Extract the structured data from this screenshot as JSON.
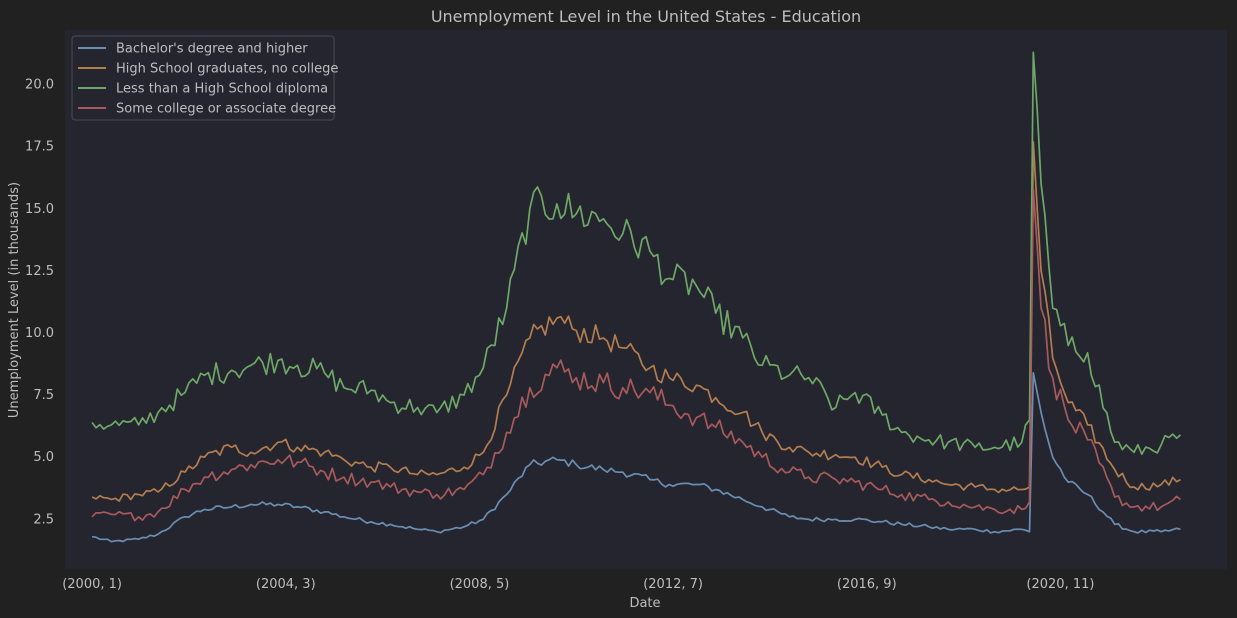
{
  "colors": {
    "figure_background": "#212121",
    "plot_background": "#252530",
    "text": "#bdbdbd",
    "legend_border": "#4a4a52"
  },
  "chart_data": {
    "type": "line",
    "title": "Unemployment Level in the United States - Education",
    "xlabel": "Date",
    "ylabel": "Unemployment Level (in thousands)",
    "x_start": "2000-01",
    "x_end": "2023-06",
    "xlim": [
      "1999-06",
      "2024-06"
    ],
    "ylim": [
      0.5,
      22.2
    ],
    "y_ticks": [
      2.5,
      5.0,
      7.5,
      10.0,
      12.5,
      15.0,
      17.5,
      20.0
    ],
    "x_ticks": [
      {
        "label": "(2000, 1)",
        "date": "2000-01"
      },
      {
        "label": "(2004, 3)",
        "date": "2004-03"
      },
      {
        "label": "(2008, 5)",
        "date": "2008-05"
      },
      {
        "label": "(2012, 7)",
        "date": "2012-07"
      },
      {
        "label": "(2016, 9)",
        "date": "2016-09"
      },
      {
        "label": "(2020, 11)",
        "date": "2020-11"
      }
    ],
    "grid": false,
    "legend_position": "top-left",
    "series": [
      {
        "name": "Bachelor's degree and higher",
        "color": "#6a8eb2",
        "points": [
          [
            "2000-01",
            1.8
          ],
          [
            "2000-06",
            1.6
          ],
          [
            "2001-01",
            1.7
          ],
          [
            "2001-06",
            1.9
          ],
          [
            "2002-01",
            2.6
          ],
          [
            "2002-06",
            2.9
          ],
          [
            "2003-01",
            3.0
          ],
          [
            "2003-06",
            3.1
          ],
          [
            "2004-01",
            3.1
          ],
          [
            "2004-06",
            3.0
          ],
          [
            "2005-01",
            2.8
          ],
          [
            "2005-06",
            2.6
          ],
          [
            "2006-01",
            2.4
          ],
          [
            "2006-06",
            2.3
          ],
          [
            "2007-01",
            2.1
          ],
          [
            "2007-06",
            2.0
          ],
          [
            "2008-01",
            2.2
          ],
          [
            "2008-06",
            2.5
          ],
          [
            "2008-12",
            3.5
          ],
          [
            "2009-06",
            4.7
          ],
          [
            "2010-01",
            4.9
          ],
          [
            "2010-06",
            4.7
          ],
          [
            "2011-01",
            4.5
          ],
          [
            "2011-06",
            4.4
          ],
          [
            "2012-01",
            4.1
          ],
          [
            "2012-06",
            3.9
          ],
          [
            "2013-01",
            3.9
          ],
          [
            "2013-06",
            3.7
          ],
          [
            "2014-01",
            3.3
          ],
          [
            "2014-06",
            3.0
          ],
          [
            "2015-01",
            2.6
          ],
          [
            "2015-06",
            2.5
          ],
          [
            "2016-01",
            2.5
          ],
          [
            "2016-06",
            2.5
          ],
          [
            "2017-01",
            2.4
          ],
          [
            "2017-06",
            2.3
          ],
          [
            "2018-01",
            2.2
          ],
          [
            "2018-06",
            2.1
          ],
          [
            "2019-01",
            2.1
          ],
          [
            "2019-06",
            2.0
          ],
          [
            "2020-01",
            2.1
          ],
          [
            "2020-03",
            2.0
          ],
          [
            "2020-04",
            8.4
          ],
          [
            "2020-05",
            7.6
          ],
          [
            "2020-06",
            6.8
          ],
          [
            "2020-09",
            5.0
          ],
          [
            "2021-01",
            4.0
          ],
          [
            "2021-06",
            3.5
          ],
          [
            "2022-01",
            2.3
          ],
          [
            "2022-06",
            2.0
          ],
          [
            "2023-01",
            2.0
          ],
          [
            "2023-06",
            2.1
          ]
        ]
      },
      {
        "name": "High School graduates, no college",
        "color": "#b37d4e",
        "points": [
          [
            "2000-01",
            3.4
          ],
          [
            "2000-06",
            3.3
          ],
          [
            "2001-01",
            3.5
          ],
          [
            "2001-06",
            3.6
          ],
          [
            "2002-01",
            4.4
          ],
          [
            "2002-06",
            5.0
          ],
          [
            "2003-01",
            5.4
          ],
          [
            "2003-06",
            5.2
          ],
          [
            "2004-01",
            5.6
          ],
          [
            "2004-06",
            5.4
          ],
          [
            "2005-01",
            5.2
          ],
          [
            "2005-06",
            4.9
          ],
          [
            "2006-01",
            4.6
          ],
          [
            "2006-06",
            4.6
          ],
          [
            "2007-01",
            4.3
          ],
          [
            "2007-06",
            4.3
          ],
          [
            "2008-01",
            4.6
          ],
          [
            "2008-06",
            5.2
          ],
          [
            "2008-12",
            7.5
          ],
          [
            "2009-06",
            9.8
          ],
          [
            "2010-01",
            10.6
          ],
          [
            "2010-06",
            10.1
          ],
          [
            "2011-01",
            9.8
          ],
          [
            "2011-06",
            9.4
          ],
          [
            "2012-01",
            8.6
          ],
          [
            "2012-06",
            8.2
          ],
          [
            "2013-01",
            7.9
          ],
          [
            "2013-06",
            7.4
          ],
          [
            "2014-01",
            6.8
          ],
          [
            "2014-06",
            6.0
          ],
          [
            "2015-01",
            5.4
          ],
          [
            "2015-06",
            5.2
          ],
          [
            "2016-01",
            5.1
          ],
          [
            "2016-06",
            5.0
          ],
          [
            "2017-01",
            4.6
          ],
          [
            "2017-06",
            4.3
          ],
          [
            "2018-01",
            4.1
          ],
          [
            "2018-06",
            3.9
          ],
          [
            "2019-01",
            3.8
          ],
          [
            "2019-06",
            3.7
          ],
          [
            "2020-01",
            3.7
          ],
          [
            "2020-03",
            3.8
          ],
          [
            "2020-04",
            17.7
          ],
          [
            "2020-05",
            15.0
          ],
          [
            "2020-06",
            12.5
          ],
          [
            "2020-09",
            9.0
          ],
          [
            "2021-01",
            7.2
          ],
          [
            "2021-06",
            6.3
          ],
          [
            "2022-01",
            4.5
          ],
          [
            "2022-06",
            3.8
          ],
          [
            "2023-01",
            3.9
          ],
          [
            "2023-06",
            4.1
          ]
        ]
      },
      {
        "name": "Less than a High School diploma",
        "color": "#6ea866",
        "points": [
          [
            "2000-01",
            6.4
          ],
          [
            "2000-06",
            6.3
          ],
          [
            "2001-01",
            6.3
          ],
          [
            "2001-06",
            6.8
          ],
          [
            "2002-01",
            7.6
          ],
          [
            "2002-06",
            8.3
          ],
          [
            "2003-01",
            8.5
          ],
          [
            "2003-06",
            8.7
          ],
          [
            "2004-01",
            8.9
          ],
          [
            "2004-06",
            8.7
          ],
          [
            "2005-01",
            8.4
          ],
          [
            "2005-06",
            7.8
          ],
          [
            "2006-01",
            7.7
          ],
          [
            "2006-06",
            7.2
          ],
          [
            "2007-01",
            7.0
          ],
          [
            "2007-06",
            6.8
          ],
          [
            "2008-01",
            7.5
          ],
          [
            "2008-06",
            8.6
          ],
          [
            "2008-12",
            11.0
          ],
          [
            "2009-06",
            15.0
          ],
          [
            "2010-01",
            15.2
          ],
          [
            "2010-06",
            14.8
          ],
          [
            "2011-01",
            14.6
          ],
          [
            "2011-06",
            14.0
          ],
          [
            "2012-01",
            13.3
          ],
          [
            "2012-06",
            12.2
          ],
          [
            "2013-01",
            11.9
          ],
          [
            "2013-06",
            10.8
          ],
          [
            "2014-01",
            9.8
          ],
          [
            "2014-06",
            8.7
          ],
          [
            "2015-01",
            8.3
          ],
          [
            "2015-06",
            8.2
          ],
          [
            "2016-01",
            7.0
          ],
          [
            "2016-06",
            7.6
          ],
          [
            "2017-01",
            6.7
          ],
          [
            "2017-06",
            6.0
          ],
          [
            "2018-01",
            5.7
          ],
          [
            "2018-06",
            5.6
          ],
          [
            "2019-01",
            5.4
          ],
          [
            "2019-06",
            5.4
          ],
          [
            "2020-01",
            5.6
          ],
          [
            "2020-03",
            6.5
          ],
          [
            "2020-04",
            21.3
          ],
          [
            "2020-05",
            19.0
          ],
          [
            "2020-06",
            16.0
          ],
          [
            "2020-09",
            11.0
          ],
          [
            "2021-01",
            9.5
          ],
          [
            "2021-06",
            9.2
          ],
          [
            "2022-01",
            5.6
          ],
          [
            "2022-06",
            5.2
          ],
          [
            "2023-01",
            5.5
          ],
          [
            "2023-06",
            5.9
          ]
        ]
      },
      {
        "name": "Some college or associate degree",
        "color": "#a85a5a",
        "points": [
          [
            "2000-01",
            2.6
          ],
          [
            "2000-06",
            2.7
          ],
          [
            "2001-01",
            2.6
          ],
          [
            "2001-06",
            2.8
          ],
          [
            "2002-01",
            3.7
          ],
          [
            "2002-06",
            4.2
          ],
          [
            "2003-01",
            4.5
          ],
          [
            "2003-06",
            4.7
          ],
          [
            "2004-01",
            4.9
          ],
          [
            "2004-06",
            4.8
          ],
          [
            "2005-01",
            4.4
          ],
          [
            "2005-06",
            4.2
          ],
          [
            "2006-01",
            4.0
          ],
          [
            "2006-06",
            3.8
          ],
          [
            "2007-01",
            3.6
          ],
          [
            "2007-06",
            3.5
          ],
          [
            "2008-01",
            3.7
          ],
          [
            "2008-06",
            4.3
          ],
          [
            "2008-12",
            6.0
          ],
          [
            "2009-06",
            7.8
          ],
          [
            "2010-01",
            8.6
          ],
          [
            "2010-06",
            8.2
          ],
          [
            "2011-01",
            8.0
          ],
          [
            "2011-06",
            7.8
          ],
          [
            "2012-01",
            7.6
          ],
          [
            "2012-06",
            7.1
          ],
          [
            "2013-01",
            6.6
          ],
          [
            "2013-06",
            6.2
          ],
          [
            "2014-01",
            5.6
          ],
          [
            "2014-06",
            5.0
          ],
          [
            "2015-01",
            4.4
          ],
          [
            "2015-06",
            4.2
          ],
          [
            "2016-01",
            4.1
          ],
          [
            "2016-06",
            4.0
          ],
          [
            "2017-01",
            3.7
          ],
          [
            "2017-06",
            3.5
          ],
          [
            "2018-01",
            3.3
          ],
          [
            "2018-06",
            3.2
          ],
          [
            "2019-01",
            3.0
          ],
          [
            "2019-06",
            2.9
          ],
          [
            "2020-01",
            2.9
          ],
          [
            "2020-03",
            3.2
          ],
          [
            "2020-04",
            15.8
          ],
          [
            "2020-05",
            13.5
          ],
          [
            "2020-06",
            11.0
          ],
          [
            "2020-09",
            8.2
          ],
          [
            "2021-01",
            6.5
          ],
          [
            "2021-06",
            5.7
          ],
          [
            "2022-01",
            3.4
          ],
          [
            "2022-06",
            3.0
          ],
          [
            "2023-01",
            3.0
          ],
          [
            "2023-06",
            3.3
          ]
        ]
      }
    ]
  }
}
